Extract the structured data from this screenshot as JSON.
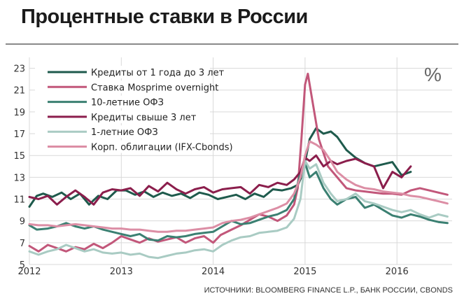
{
  "chart_data": {
    "type": "line",
    "title": "Процентные ставки в России",
    "unit_label": "%",
    "source": "ИСТОЧНИКИ: BLOOMBERG FINANCE L.P., БАНК РОССИИ, CBONDS",
    "ylim": [
      5,
      24
    ],
    "xlim": [
      2012,
      2016.6
    ],
    "yticks": [
      5,
      7,
      9,
      11,
      13,
      15,
      17,
      19,
      21,
      23
    ],
    "xticks": [
      2012,
      2013,
      2014,
      2015,
      2016
    ],
    "grid": true,
    "legend_position": "top-left",
    "series": [
      {
        "name": "Кредиты от 1 года до 3 лет",
        "color": "#1e5a4c",
        "x": [
          2012,
          2012.08,
          2012.15,
          2012.25,
          2012.35,
          2012.45,
          2012.55,
          2012.65,
          2012.75,
          2012.85,
          2012.95,
          2013.05,
          2013.15,
          2013.25,
          2013.35,
          2013.45,
          2013.55,
          2013.65,
          2013.75,
          2013.85,
          2013.95,
          2014.05,
          2014.15,
          2014.25,
          2014.35,
          2014.45,
          2014.55,
          2014.65,
          2014.75,
          2014.85,
          2014.92,
          2014.97,
          2015.05,
          2015.12,
          2015.2,
          2015.28,
          2015.35,
          2015.45,
          2015.55,
          2015.65,
          2015.75,
          2015.85,
          2015.95,
          2016.05,
          2016.15
        ],
        "y": [
          10.3,
          11.3,
          11.5,
          11.2,
          11.6,
          11.0,
          11.5,
          10.5,
          11.3,
          11.0,
          11.8,
          11.8,
          11.4,
          11.7,
          11.2,
          11.6,
          11.3,
          11.5,
          11.1,
          11.6,
          11.4,
          11.0,
          11.2,
          11.4,
          11.0,
          11.5,
          11.2,
          11.9,
          11.8,
          12.0,
          12.3,
          13.2,
          16.5,
          17.5,
          17.0,
          17.2,
          16.7,
          15.5,
          14.8,
          14.3,
          14.0,
          14.2,
          14.4,
          13.2,
          13.5
        ]
      },
      {
        "name": "Ставка Mosprime overnight",
        "color": "#c2577a",
        "x": [
          2012,
          2012.1,
          2012.2,
          2012.3,
          2012.4,
          2012.5,
          2012.6,
          2012.7,
          2012.8,
          2012.9,
          2013,
          2013.1,
          2013.2,
          2013.3,
          2013.4,
          2013.5,
          2013.6,
          2013.7,
          2013.8,
          2013.9,
          2014,
          2014.08,
          2014.2,
          2014.3,
          2014.4,
          2014.5,
          2014.6,
          2014.7,
          2014.8,
          2014.88,
          2014.92,
          2014.96,
          2015.0,
          2015.03,
          2015.08,
          2015.15,
          2015.25,
          2015.35,
          2015.45,
          2015.55,
          2015.65,
          2015.75,
          2015.85,
          2015.95,
          2016.05,
          2016.15,
          2016.25,
          2016.35,
          2016.45,
          2016.55
        ],
        "y": [
          6.7,
          6.2,
          6.8,
          6.5,
          6.2,
          6.6,
          6.4,
          6.9,
          6.5,
          7.0,
          7.6,
          7.3,
          7.0,
          7.4,
          7.1,
          7.3,
          7.5,
          7.0,
          7.4,
          7.6,
          7.0,
          7.7,
          8.2,
          8.6,
          9.1,
          9.6,
          9.4,
          9.0,
          9.5,
          10.5,
          12.0,
          16.5,
          21.5,
          22.5,
          20.0,
          16.5,
          14.0,
          13.0,
          12.0,
          11.8,
          11.7,
          11.6,
          11.5,
          11.5,
          11.4,
          11.8,
          12.0,
          11.8,
          11.6,
          11.4
        ]
      },
      {
        "name": "10-летние ОФЗ",
        "color": "#3b8072",
        "x": [
          2012,
          2012.08,
          2012.2,
          2012.3,
          2012.4,
          2012.5,
          2012.6,
          2012.7,
          2012.8,
          2012.9,
          2013,
          2013.1,
          2013.2,
          2013.3,
          2013.4,
          2013.5,
          2013.6,
          2013.7,
          2013.8,
          2013.9,
          2014,
          2014.1,
          2014.2,
          2014.3,
          2014.4,
          2014.5,
          2014.6,
          2014.7,
          2014.8,
          2014.88,
          2014.95,
          2015.0,
          2015.05,
          2015.12,
          2015.2,
          2015.28,
          2015.35,
          2015.45,
          2015.55,
          2015.65,
          2015.75,
          2015.85,
          2015.95,
          2016.05,
          2016.15,
          2016.25,
          2016.35,
          2016.45,
          2016.55
        ],
        "y": [
          8.6,
          8.2,
          8.3,
          8.5,
          8.8,
          8.5,
          8.3,
          8.5,
          8.2,
          8.0,
          7.8,
          7.6,
          7.8,
          7.3,
          7.2,
          7.6,
          7.5,
          7.6,
          7.8,
          7.9,
          8.0,
          8.5,
          9.0,
          8.7,
          8.8,
          9.1,
          9.4,
          9.6,
          10.0,
          11.0,
          13.5,
          14.3,
          13.0,
          13.5,
          12.0,
          11.0,
          10.5,
          11.0,
          11.2,
          10.2,
          10.5,
          10.0,
          9.5,
          9.3,
          9.6,
          9.4,
          9.1,
          8.9,
          8.8
        ]
      },
      {
        "name": "Кредиты свыше 3 лет",
        "color": "#8b1e4c",
        "x": [
          2012,
          2012.1,
          2012.2,
          2012.3,
          2012.4,
          2012.5,
          2012.6,
          2012.7,
          2012.8,
          2012.9,
          2013,
          2013.1,
          2013.2,
          2013.3,
          2013.4,
          2013.5,
          2013.6,
          2013.7,
          2013.8,
          2013.9,
          2014,
          2014.1,
          2014.2,
          2014.3,
          2014.4,
          2014.5,
          2014.6,
          2014.7,
          2014.8,
          2014.88,
          2014.95,
          2015.0,
          2015.05,
          2015.12,
          2015.2,
          2015.28,
          2015.35,
          2015.45,
          2015.55,
          2015.65,
          2015.75,
          2015.85,
          2015.95,
          2016.05,
          2016.15
        ],
        "y": [
          11.2,
          11.0,
          11.3,
          10.5,
          11.2,
          11.8,
          11.2,
          10.5,
          11.6,
          11.9,
          11.8,
          12.0,
          11.3,
          12.2,
          11.7,
          12.5,
          11.9,
          11.5,
          11.9,
          12.1,
          11.6,
          11.9,
          12.0,
          12.1,
          11.5,
          12.3,
          12.1,
          12.5,
          12.3,
          12.8,
          13.5,
          14.8,
          14.5,
          15.0,
          14.0,
          14.5,
          14.2,
          14.5,
          14.7,
          14.3,
          14.0,
          12.0,
          13.5,
          13.0,
          14.0
        ]
      },
      {
        "name": "1-летние ОФЗ",
        "color": "#a9cbc3",
        "x": [
          2012,
          2012.1,
          2012.2,
          2012.3,
          2012.4,
          2012.5,
          2012.6,
          2012.7,
          2012.8,
          2012.9,
          2013,
          2013.1,
          2013.2,
          2013.3,
          2013.4,
          2013.5,
          2013.6,
          2013.7,
          2013.8,
          2013.9,
          2014,
          2014.1,
          2014.2,
          2014.3,
          2014.4,
          2014.5,
          2014.6,
          2014.7,
          2014.8,
          2014.88,
          2014.95,
          2015.0,
          2015.05,
          2015.12,
          2015.2,
          2015.28,
          2015.35,
          2015.45,
          2015.55,
          2015.65,
          2015.75,
          2015.85,
          2015.95,
          2016.05,
          2016.15,
          2016.25,
          2016.35,
          2016.45,
          2016.55
        ],
        "y": [
          6.2,
          5.9,
          6.2,
          6.4,
          6.8,
          6.5,
          6.2,
          6.4,
          6.1,
          6.0,
          6.1,
          5.9,
          6.0,
          5.7,
          5.6,
          5.8,
          6.0,
          6.1,
          6.3,
          6.4,
          6.2,
          6.8,
          7.2,
          7.5,
          7.6,
          7.9,
          8.0,
          8.1,
          8.4,
          9.2,
          11.0,
          14.5,
          13.8,
          14.2,
          12.5,
          11.5,
          10.8,
          11.0,
          11.5,
          10.8,
          10.6,
          10.3,
          10.0,
          9.8,
          10.0,
          9.6,
          9.3,
          9.6,
          9.4
        ]
      },
      {
        "name": "Корп. облигации (IFX-Cbonds)",
        "color": "#dc8ea5",
        "x": [
          2012,
          2012.1,
          2012.2,
          2012.3,
          2012.4,
          2012.5,
          2012.6,
          2012.7,
          2012.8,
          2012.9,
          2013,
          2013.1,
          2013.2,
          2013.3,
          2013.4,
          2013.5,
          2013.6,
          2013.7,
          2013.8,
          2013.9,
          2014,
          2014.1,
          2014.2,
          2014.3,
          2014.4,
          2014.5,
          2014.6,
          2014.7,
          2014.8,
          2014.88,
          2014.95,
          2015.0,
          2015.05,
          2015.12,
          2015.2,
          2015.28,
          2015.35,
          2015.45,
          2015.55,
          2015.65,
          2015.75,
          2015.85,
          2015.95,
          2016.05,
          2016.15,
          2016.25,
          2016.35,
          2016.45,
          2016.55
        ],
        "y": [
          8.7,
          8.6,
          8.6,
          8.5,
          8.6,
          8.7,
          8.6,
          8.5,
          8.4,
          8.3,
          8.3,
          8.2,
          8.2,
          8.1,
          8.0,
          8.0,
          8.1,
          8.1,
          8.2,
          8.3,
          8.4,
          8.8,
          9.0,
          9.1,
          9.3,
          9.6,
          9.9,
          10.2,
          10.6,
          11.5,
          13.0,
          15.0,
          16.3,
          16.0,
          15.5,
          14.5,
          13.5,
          12.8,
          12.3,
          12.0,
          11.9,
          11.7,
          11.6,
          11.5,
          11.3,
          11.2,
          11.0,
          10.8,
          10.6
        ]
      }
    ]
  }
}
